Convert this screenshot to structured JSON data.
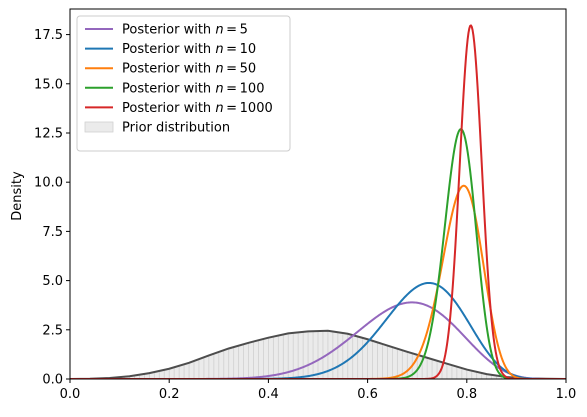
{
  "chart_data": {
    "type": "line",
    "title": "",
    "xlabel": "",
    "ylabel": "Density",
    "xlim": [
      0,
      1
    ],
    "ylim": [
      0,
      18.8
    ],
    "grid": false,
    "legend_position": "top-left",
    "x_ticks": [
      0.0,
      0.2,
      0.4,
      0.6,
      0.8,
      1.0
    ],
    "x_tick_labels": [
      "0.0",
      "0.2",
      "0.4",
      "0.6",
      "0.8",
      "1.0"
    ],
    "y_ticks": [
      0.0,
      2.5,
      5.0,
      7.5,
      10.0,
      12.5,
      15.0,
      17.5
    ],
    "y_tick_labels": [
      "0.0",
      "2.5",
      "5.0",
      "7.5",
      "10.0",
      "12.5",
      "15.0",
      "17.5"
    ],
    "prior": {
      "name": "Prior distribution",
      "fill_color": "#ebebeb",
      "edge_color": "#d0d0d0",
      "line_color": "#4d4d4d",
      "x": [
        0.0,
        0.04,
        0.08,
        0.12,
        0.16,
        0.2,
        0.24,
        0.28,
        0.32,
        0.36,
        0.4,
        0.44,
        0.48,
        0.52,
        0.56,
        0.6,
        0.64,
        0.68,
        0.72,
        0.76,
        0.8,
        0.84,
        0.88,
        0.92,
        0.96,
        1.0
      ],
      "y": [
        0.0,
        0.01,
        0.05,
        0.14,
        0.3,
        0.52,
        0.82,
        1.2,
        1.55,
        1.84,
        2.1,
        2.32,
        2.42,
        2.45,
        2.3,
        2.02,
        1.7,
        1.38,
        1.08,
        0.78,
        0.48,
        0.25,
        0.1,
        0.03,
        0.01,
        0.0
      ]
    },
    "series": [
      {
        "name": "Posterior with n = 5",
        "label_prefix": "Posterior with ",
        "label_n": "5",
        "color": "#9467bd",
        "dist": "beta",
        "a": 14.1,
        "b": 6.9
      },
      {
        "name": "Posterior with n = 10",
        "label_prefix": "Posterior with ",
        "label_n": "10",
        "color": "#1f77b4",
        "dist": "beta",
        "a": 21.7,
        "b": 8.9
      },
      {
        "name": "Posterior with n = 50",
        "label_prefix": "Posterior with ",
        "label_n": "50",
        "color": "#ff7f0e",
        "dist": "beta",
        "a": 78.8,
        "b": 21.2
      },
      {
        "name": "Posterior with n = 100",
        "label_prefix": "Posterior with ",
        "label_n": "100",
        "color": "#2ca02c",
        "dist": "beta",
        "a": 133.4,
        "b": 36.6
      },
      {
        "name": "Posterior with n = 1000",
        "label_prefix": "Posterior with ",
        "label_n": "1000",
        "color": "#d62728",
        "dist": "normal",
        "mean": 0.808,
        "sd": 0.0222
      }
    ]
  }
}
